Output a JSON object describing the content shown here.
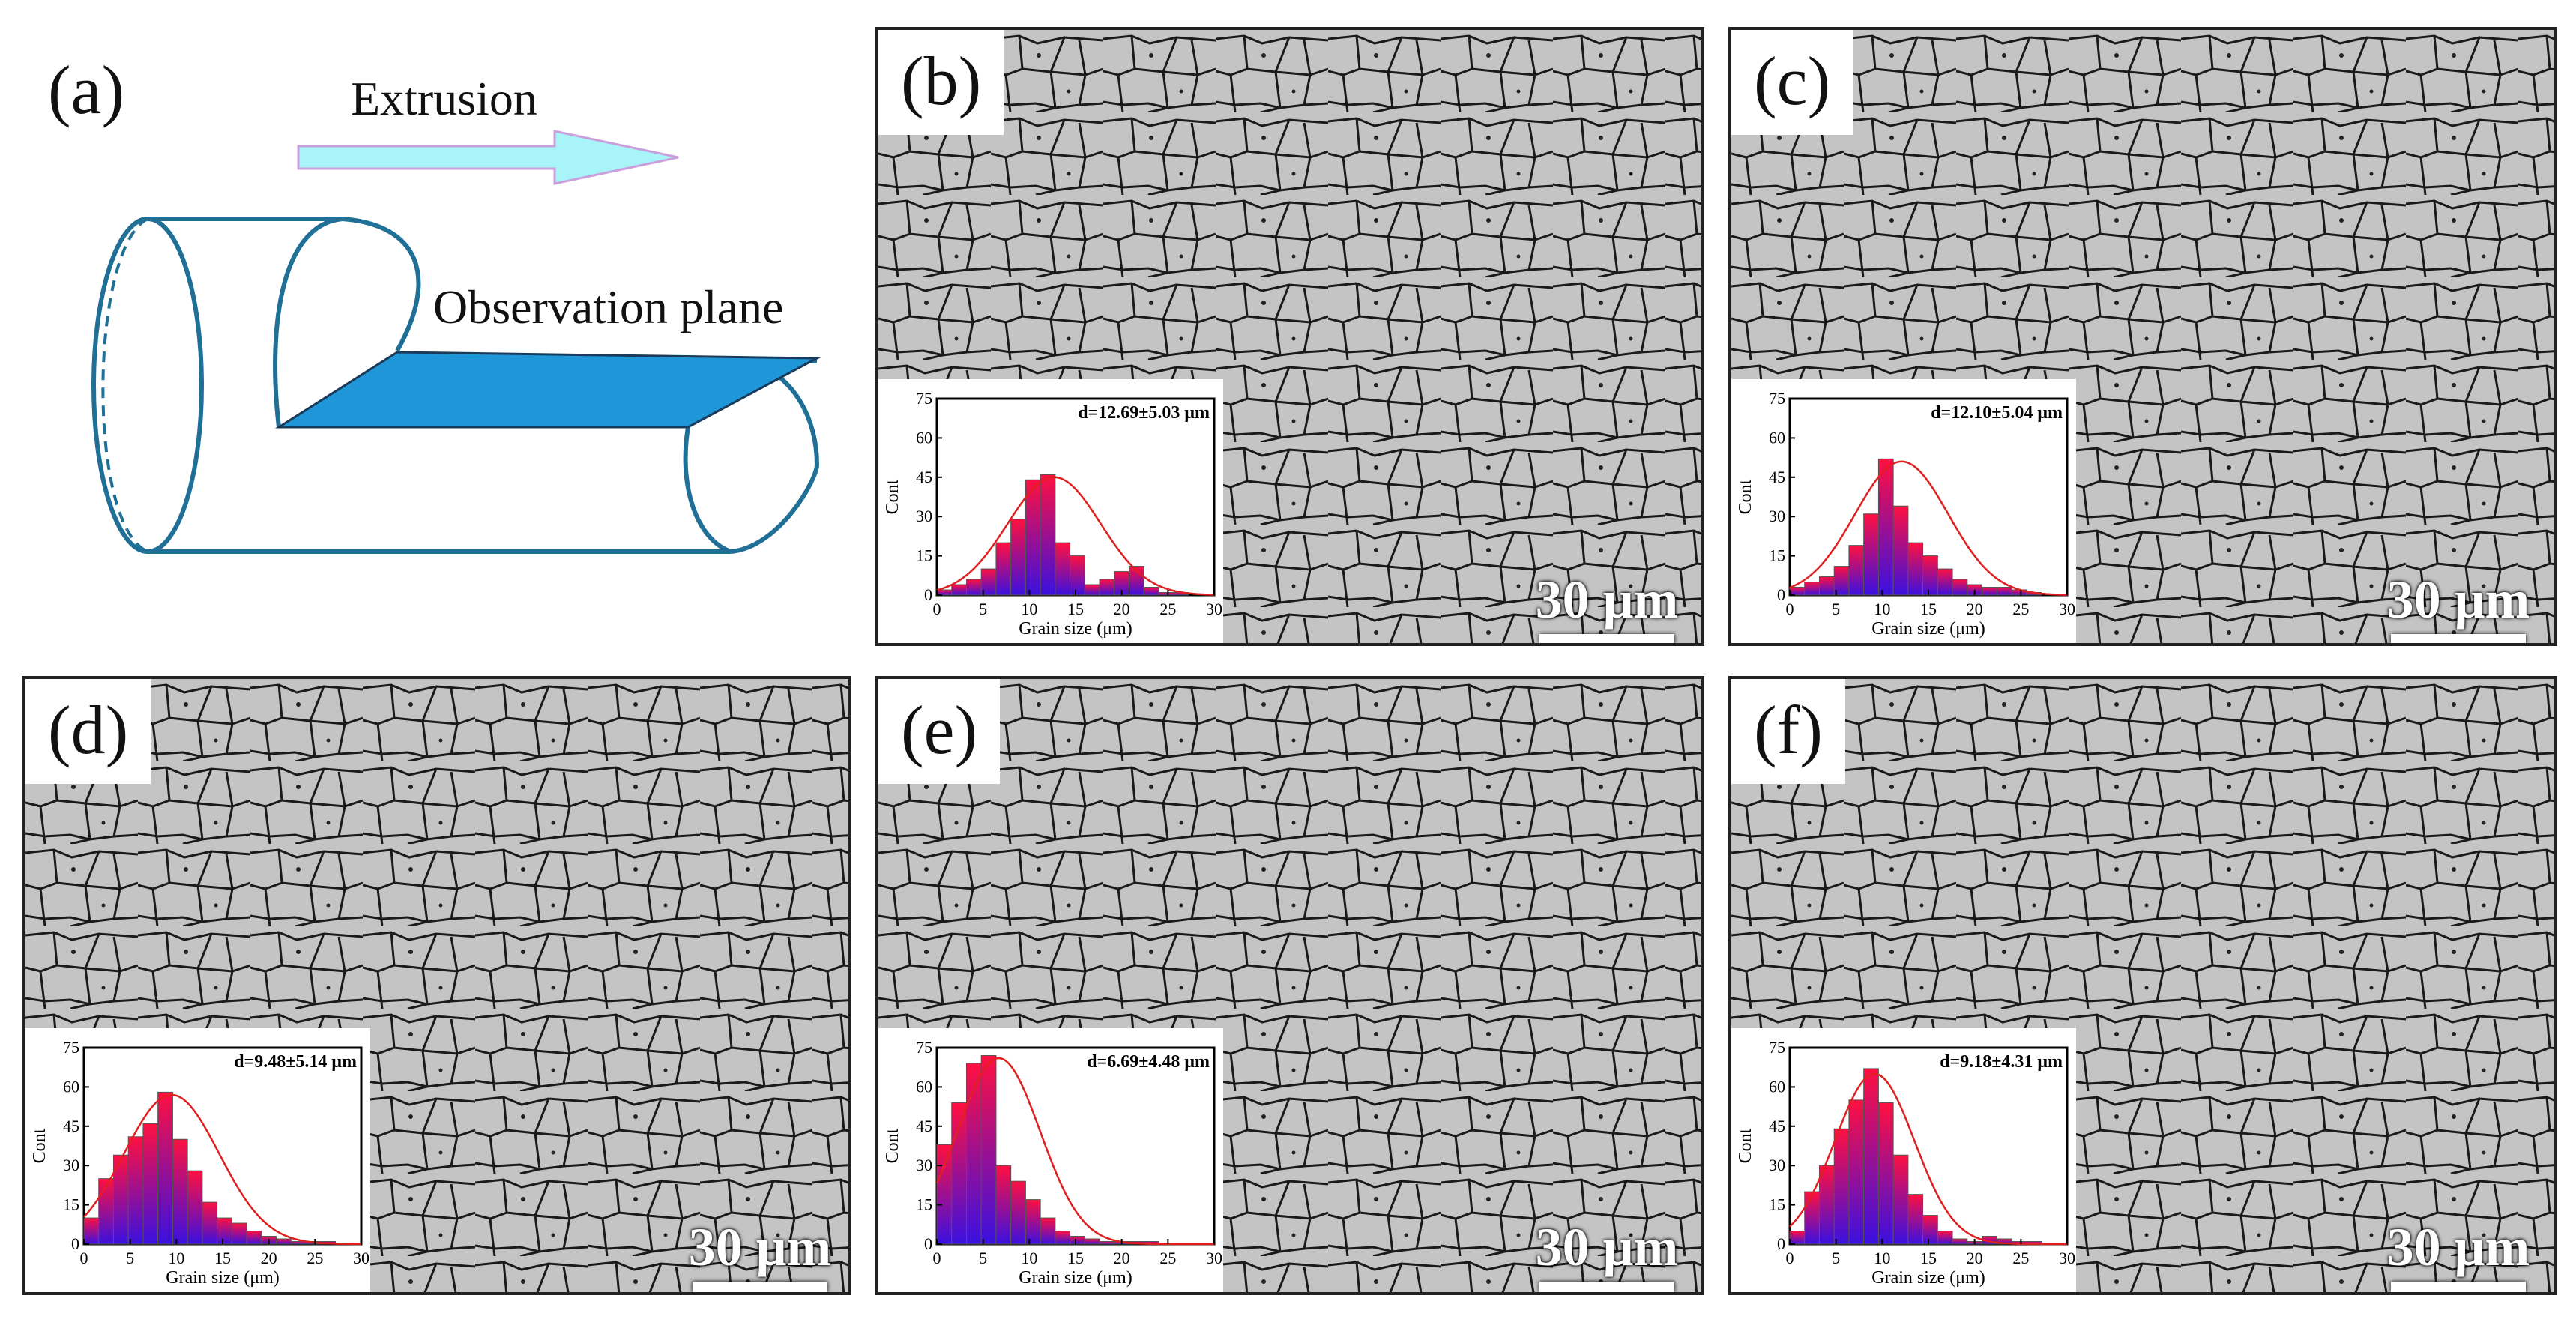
{
  "panel_a": {
    "label": "(a)",
    "arrow_label": "Extrusion",
    "plane_label": "Observation plane"
  },
  "panels": [
    {
      "id": "b",
      "label": "(b)",
      "scale": "30 μm",
      "stat": "d=12.69±5.03 μm"
    },
    {
      "id": "c",
      "label": "(c)",
      "scale": "30 μm",
      "stat": "d=12.10±5.04 μm"
    },
    {
      "id": "d",
      "label": "(d)",
      "scale": "30 μm",
      "stat": "d=9.48±5.14 μm"
    },
    {
      "id": "e",
      "label": "(e)",
      "scale": "30 μm",
      "stat": "d=6.69±4.48 μm"
    },
    {
      "id": "f",
      "label": "(f)",
      "scale": "30 μm",
      "stat": "d=9.18±4.31 μm"
    }
  ],
  "colors": {
    "bar_top": "#ff1040",
    "bar_bottom": "#3a10e0",
    "fit_line": "#e02020",
    "arrow_fill": "#a8f4f8",
    "plane_fill": "#1e96d8",
    "cylinder_stroke": "#1f6f96"
  },
  "chart_data": [
    {
      "type": "bar",
      "panel": "b",
      "title": "d=12.69±5.03 μm",
      "xlabel": "Grain size (μm)",
      "ylabel": "Cont",
      "xlim": [
        0,
        30
      ],
      "ylim": [
        0,
        75
      ],
      "xticks": [
        "0",
        "5",
        "10",
        "15",
        "20",
        "25",
        "30"
      ],
      "yticks": [
        "0",
        "15",
        "30",
        "45",
        "60",
        "75"
      ],
      "bin_width": 1.6,
      "x": [
        0.8,
        2.4,
        4.0,
        5.6,
        7.2,
        8.8,
        10.4,
        12.0,
        13.6,
        15.2,
        16.8,
        18.4,
        20.0,
        21.6,
        23.2,
        24.8,
        26.4
      ],
      "values": [
        2,
        4,
        6,
        10,
        20,
        29,
        44,
        46,
        20,
        15,
        4,
        6,
        9,
        11,
        3,
        1,
        1
      ],
      "fit": {
        "mean": 12.69,
        "sd": 5.03,
        "peak": 45
      }
    },
    {
      "type": "bar",
      "panel": "c",
      "title": "d=12.10±5.04 μm",
      "xlabel": "Grain size (μm)",
      "ylabel": "Cont",
      "xlim": [
        0,
        30
      ],
      "ylim": [
        0,
        75
      ],
      "xticks": [
        "0",
        "5",
        "10",
        "15",
        "20",
        "25",
        "30"
      ],
      "yticks": [
        "0",
        "15",
        "30",
        "45",
        "60",
        "75"
      ],
      "bin_width": 1.6,
      "x": [
        0.8,
        2.4,
        4.0,
        5.6,
        7.2,
        8.8,
        10.4,
        12.0,
        13.6,
        15.2,
        16.8,
        18.4,
        20.0,
        21.6,
        23.2,
        24.8,
        26.4
      ],
      "values": [
        3,
        5,
        7,
        11,
        19,
        31,
        52,
        34,
        20,
        15,
        10,
        6,
        4,
        3,
        3,
        2,
        1
      ],
      "fit": {
        "mean": 12.1,
        "sd": 5.04,
        "peak": 51
      }
    },
    {
      "type": "bar",
      "panel": "d",
      "title": "d=9.48±5.14 μm",
      "xlabel": "Grain size (μm)",
      "ylabel": "Cont",
      "xlim": [
        0,
        30
      ],
      "ylim": [
        0,
        75
      ],
      "xticks": [
        "0",
        "5",
        "10",
        "15",
        "20",
        "25",
        "30"
      ],
      "yticks": [
        "0",
        "15",
        "30",
        "45",
        "60",
        "75"
      ],
      "bin_width": 1.6,
      "x": [
        0.8,
        2.4,
        4.0,
        5.6,
        7.2,
        8.8,
        10.4,
        12.0,
        13.6,
        15.2,
        16.8,
        18.4,
        20.0,
        21.6,
        23.2,
        24.8,
        26.4
      ],
      "values": [
        10,
        25,
        34,
        41,
        46,
        58,
        40,
        28,
        16,
        10,
        8,
        5,
        3,
        2,
        1,
        1,
        1
      ],
      "fit": {
        "mean": 9.48,
        "sd": 5.14,
        "peak": 57
      }
    },
    {
      "type": "bar",
      "panel": "e",
      "title": "d=6.69±4.48 μm",
      "xlabel": "Grain size (μm)",
      "ylabel": "Cont",
      "xlim": [
        0,
        30
      ],
      "ylim": [
        0,
        75
      ],
      "xticks": [
        "0",
        "5",
        "10",
        "15",
        "20",
        "25",
        "30"
      ],
      "yticks": [
        "0",
        "15",
        "30",
        "45",
        "60",
        "75"
      ],
      "bin_width": 1.6,
      "x": [
        0.8,
        2.4,
        4.0,
        5.6,
        7.2,
        8.8,
        10.4,
        12.0,
        13.6,
        15.2,
        16.8,
        18.4,
        20.0,
        21.6,
        23.2,
        24.8,
        26.4
      ],
      "values": [
        38,
        54,
        69,
        72,
        30,
        24,
        17,
        10,
        5,
        3,
        2,
        1,
        1,
        1,
        1,
        0,
        0
      ],
      "fit": {
        "mean": 6.69,
        "sd": 4.48,
        "peak": 71
      }
    },
    {
      "type": "bar",
      "panel": "f",
      "title": "d=9.18±4.31 μm",
      "xlabel": "Grain size (μm)",
      "ylabel": "Cont",
      "xlim": [
        0,
        30
      ],
      "ylim": [
        0,
        75
      ],
      "xticks": [
        "0",
        "5",
        "10",
        "15",
        "20",
        "25",
        "30"
      ],
      "yticks": [
        "0",
        "15",
        "30",
        "45",
        "60",
        "75"
      ],
      "bin_width": 1.6,
      "x": [
        0.8,
        2.4,
        4.0,
        5.6,
        7.2,
        8.8,
        10.4,
        12.0,
        13.6,
        15.2,
        16.8,
        18.4,
        20.0,
        21.6,
        23.2,
        24.8,
        26.4
      ],
      "values": [
        5,
        20,
        30,
        44,
        55,
        67,
        54,
        34,
        19,
        11,
        5,
        2,
        1,
        3,
        2,
        1,
        1
      ],
      "fit": {
        "mean": 9.18,
        "sd": 4.31,
        "peak": 65
      }
    }
  ]
}
